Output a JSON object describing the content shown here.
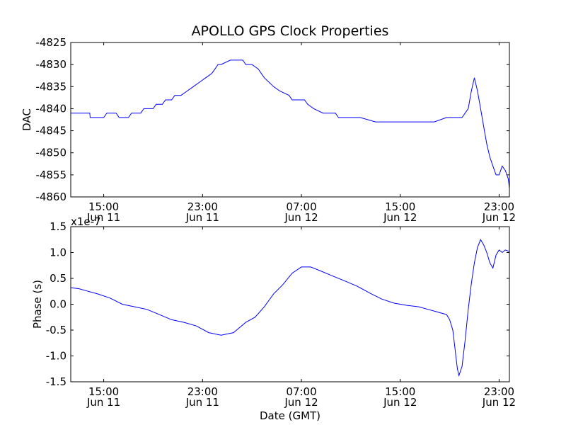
{
  "title": "APOLLO GPS Clock Properties",
  "chart_data": [
    {
      "type": "line",
      "ylabel": "DAC",
      "xlabel": "",
      "exponent_label": "",
      "color": "#0000ff",
      "xlim": [
        10.333,
        24.533
      ],
      "ylim": [
        -4860,
        -4825
      ],
      "yticks": [
        -4825,
        -4830,
        -4835,
        -4840,
        -4845,
        -4850,
        -4855,
        -4860
      ],
      "ytick_labels": [
        "-4825",
        "-4830",
        "-4835",
        "-4840",
        "-4845",
        "-4850",
        "-4855",
        "-4860"
      ],
      "xticks": [
        {
          "hour": 11.4,
          "time": "15:00",
          "date": "Jun 11"
        },
        {
          "hour": 14.6,
          "time": "23:00",
          "date": "Jun 11"
        },
        {
          "hour": 17.8,
          "time": "07:00",
          "date": "Jun 12"
        },
        {
          "hour": 21.0,
          "time": "15:00",
          "date": "Jun 12"
        },
        {
          "hour": 24.2,
          "time": "23:00",
          "date": "Jun 12"
        }
      ],
      "series": [
        {
          "name": "DAC",
          "x": [
            10.33,
            10.95,
            10.96,
            11.4,
            11.5,
            11.8,
            11.9,
            12.2,
            12.3,
            12.6,
            12.7,
            13.0,
            13.1,
            13.3,
            13.4,
            13.6,
            13.7,
            13.9,
            14.1,
            14.3,
            14.5,
            14.7,
            14.9,
            15.0,
            15.1,
            15.2,
            15.5,
            15.9,
            16.0,
            16.1,
            16.2,
            16.4,
            16.6,
            16.9,
            17.1,
            17.4,
            17.5,
            17.7,
            17.9,
            18.0,
            18.2,
            18.5,
            18.9,
            19.0,
            19.4,
            19.7,
            20.2,
            20.8,
            21.0,
            21.2,
            21.6,
            22.1,
            22.5,
            22.6,
            22.7,
            22.8,
            22.85,
            22.9,
            22.95,
            23.0,
            23.1,
            23.2,
            23.3,
            23.4,
            23.5,
            23.6,
            23.7,
            23.8,
            23.9,
            24.0,
            24.05,
            24.1,
            24.2,
            24.3,
            24.4,
            24.5,
            24.53
          ],
          "values": [
            -4841,
            -4841,
            -4842,
            -4842,
            -4841,
            -4841,
            -4842,
            -4842,
            -4841,
            -4841,
            -4840,
            -4840,
            -4839,
            -4839,
            -4838,
            -4838,
            -4837,
            -4837,
            -4836,
            -4835,
            -4834,
            -4833,
            -4832,
            -4831,
            -4830,
            -4830,
            -4829,
            -4829,
            -4830,
            -4830,
            -4830,
            -4831,
            -4833,
            -4835,
            -4836,
            -4837,
            -4838,
            -4838,
            -4838,
            -4839,
            -4840,
            -4841,
            -4841,
            -4842,
            -4842,
            -4842,
            -4843,
            -4843,
            -4843,
            -4843,
            -4843,
            -4843,
            -4842,
            -4842,
            -4842,
            -4842,
            -4842,
            -4842,
            -4842,
            -4842,
            -4841,
            -4840,
            -4836,
            -4833,
            -4836,
            -4840,
            -4844,
            -4848,
            -4851,
            -4853,
            -4854,
            -4855,
            -4855,
            -4853,
            -4854,
            -4856,
            -4858
          ]
        }
      ]
    },
    {
      "type": "line",
      "ylabel": "Phase (s)",
      "xlabel": "Date (GMT)",
      "exponent_label": "x1e-7",
      "color": "#0000ff",
      "xlim": [
        10.333,
        24.533
      ],
      "ylim": [
        -1.5,
        1.5
      ],
      "yticks": [
        1.5,
        1.0,
        0.5,
        0.0,
        -0.5,
        -1.0,
        -1.5
      ],
      "ytick_labels": [
        "1.5",
        "1.0",
        "0.5",
        "0.0",
        "-0.5",
        "-1.0",
        "-1.5"
      ],
      "xticks": [
        {
          "hour": 11.4,
          "time": "15:00",
          "date": "Jun 11"
        },
        {
          "hour": 14.6,
          "time": "23:00",
          "date": "Jun 11"
        },
        {
          "hour": 17.8,
          "time": "07:00",
          "date": "Jun 12"
        },
        {
          "hour": 21.0,
          "time": "15:00",
          "date": "Jun 12"
        },
        {
          "hour": 24.2,
          "time": "23:00",
          "date": "Jun 12"
        }
      ],
      "series": [
        {
          "name": "Phase",
          "x": [
            10.33,
            10.6,
            10.9,
            11.2,
            11.6,
            12.0,
            12.4,
            12.8,
            13.2,
            13.6,
            14.0,
            14.4,
            14.8,
            15.2,
            15.6,
            15.8,
            16.0,
            16.3,
            16.6,
            16.9,
            17.2,
            17.5,
            17.8,
            18.1,
            18.4,
            18.8,
            19.2,
            19.6,
            20.0,
            20.4,
            20.8,
            21.2,
            21.6,
            21.9,
            22.2,
            22.5,
            22.6,
            22.7,
            22.75,
            22.8,
            22.85,
            22.9,
            23.0,
            23.1,
            23.2,
            23.3,
            23.4,
            23.5,
            23.6,
            23.7,
            23.8,
            23.9,
            24.0,
            24.1,
            24.2,
            24.3,
            24.4,
            24.53
          ],
          "values": [
            0.32,
            0.3,
            0.25,
            0.2,
            0.12,
            0.0,
            -0.05,
            -0.1,
            -0.2,
            -0.3,
            -0.35,
            -0.42,
            -0.55,
            -0.6,
            -0.55,
            -0.45,
            -0.35,
            -0.25,
            -0.05,
            0.2,
            0.38,
            0.6,
            0.72,
            0.72,
            0.65,
            0.55,
            0.45,
            0.35,
            0.22,
            0.1,
            0.02,
            -0.02,
            -0.05,
            -0.1,
            -0.15,
            -0.2,
            -0.3,
            -0.5,
            -0.75,
            -1.0,
            -1.25,
            -1.38,
            -1.2,
            -0.7,
            -0.1,
            0.4,
            0.8,
            1.1,
            1.25,
            1.15,
            1.0,
            0.8,
            0.7,
            0.95,
            1.05,
            1.0,
            1.05,
            1.02
          ]
        }
      ]
    }
  ]
}
